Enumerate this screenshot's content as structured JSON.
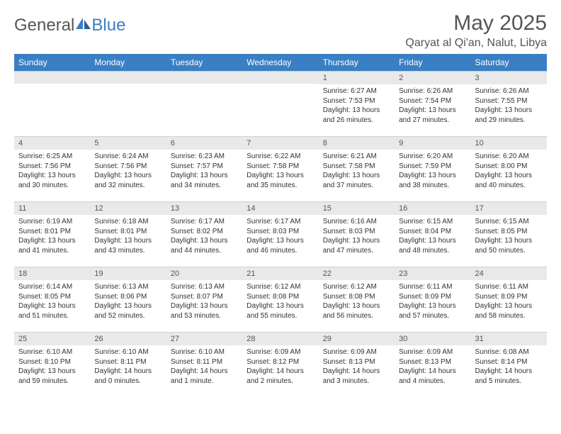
{
  "logo": {
    "text1": "General",
    "text2": "Blue"
  },
  "title": "May 2025",
  "location": "Qaryat al Qi'an, Nalut, Libya",
  "colors": {
    "header_bg": "#3a7fc4",
    "header_text": "#ffffff",
    "daynum_bg": "#e9e9e9",
    "body_text": "#333333",
    "title_text": "#555555"
  },
  "weekdays": [
    "Sunday",
    "Monday",
    "Tuesday",
    "Wednesday",
    "Thursday",
    "Friday",
    "Saturday"
  ],
  "weeks": [
    [
      null,
      null,
      null,
      null,
      {
        "n": "1",
        "sr": "Sunrise: 6:27 AM",
        "ss": "Sunset: 7:53 PM",
        "dl": "Daylight: 13 hours and 26 minutes."
      },
      {
        "n": "2",
        "sr": "Sunrise: 6:26 AM",
        "ss": "Sunset: 7:54 PM",
        "dl": "Daylight: 13 hours and 27 minutes."
      },
      {
        "n": "3",
        "sr": "Sunrise: 6:26 AM",
        "ss": "Sunset: 7:55 PM",
        "dl": "Daylight: 13 hours and 29 minutes."
      }
    ],
    [
      {
        "n": "4",
        "sr": "Sunrise: 6:25 AM",
        "ss": "Sunset: 7:56 PM",
        "dl": "Daylight: 13 hours and 30 minutes."
      },
      {
        "n": "5",
        "sr": "Sunrise: 6:24 AM",
        "ss": "Sunset: 7:56 PM",
        "dl": "Daylight: 13 hours and 32 minutes."
      },
      {
        "n": "6",
        "sr": "Sunrise: 6:23 AM",
        "ss": "Sunset: 7:57 PM",
        "dl": "Daylight: 13 hours and 34 minutes."
      },
      {
        "n": "7",
        "sr": "Sunrise: 6:22 AM",
        "ss": "Sunset: 7:58 PM",
        "dl": "Daylight: 13 hours and 35 minutes."
      },
      {
        "n": "8",
        "sr": "Sunrise: 6:21 AM",
        "ss": "Sunset: 7:58 PM",
        "dl": "Daylight: 13 hours and 37 minutes."
      },
      {
        "n": "9",
        "sr": "Sunrise: 6:20 AM",
        "ss": "Sunset: 7:59 PM",
        "dl": "Daylight: 13 hours and 38 minutes."
      },
      {
        "n": "10",
        "sr": "Sunrise: 6:20 AM",
        "ss": "Sunset: 8:00 PM",
        "dl": "Daylight: 13 hours and 40 minutes."
      }
    ],
    [
      {
        "n": "11",
        "sr": "Sunrise: 6:19 AM",
        "ss": "Sunset: 8:01 PM",
        "dl": "Daylight: 13 hours and 41 minutes."
      },
      {
        "n": "12",
        "sr": "Sunrise: 6:18 AM",
        "ss": "Sunset: 8:01 PM",
        "dl": "Daylight: 13 hours and 43 minutes."
      },
      {
        "n": "13",
        "sr": "Sunrise: 6:17 AM",
        "ss": "Sunset: 8:02 PM",
        "dl": "Daylight: 13 hours and 44 minutes."
      },
      {
        "n": "14",
        "sr": "Sunrise: 6:17 AM",
        "ss": "Sunset: 8:03 PM",
        "dl": "Daylight: 13 hours and 46 minutes."
      },
      {
        "n": "15",
        "sr": "Sunrise: 6:16 AM",
        "ss": "Sunset: 8:03 PM",
        "dl": "Daylight: 13 hours and 47 minutes."
      },
      {
        "n": "16",
        "sr": "Sunrise: 6:15 AM",
        "ss": "Sunset: 8:04 PM",
        "dl": "Daylight: 13 hours and 48 minutes."
      },
      {
        "n": "17",
        "sr": "Sunrise: 6:15 AM",
        "ss": "Sunset: 8:05 PM",
        "dl": "Daylight: 13 hours and 50 minutes."
      }
    ],
    [
      {
        "n": "18",
        "sr": "Sunrise: 6:14 AM",
        "ss": "Sunset: 8:05 PM",
        "dl": "Daylight: 13 hours and 51 minutes."
      },
      {
        "n": "19",
        "sr": "Sunrise: 6:13 AM",
        "ss": "Sunset: 8:06 PM",
        "dl": "Daylight: 13 hours and 52 minutes."
      },
      {
        "n": "20",
        "sr": "Sunrise: 6:13 AM",
        "ss": "Sunset: 8:07 PM",
        "dl": "Daylight: 13 hours and 53 minutes."
      },
      {
        "n": "21",
        "sr": "Sunrise: 6:12 AM",
        "ss": "Sunset: 8:08 PM",
        "dl": "Daylight: 13 hours and 55 minutes."
      },
      {
        "n": "22",
        "sr": "Sunrise: 6:12 AM",
        "ss": "Sunset: 8:08 PM",
        "dl": "Daylight: 13 hours and 56 minutes."
      },
      {
        "n": "23",
        "sr": "Sunrise: 6:11 AM",
        "ss": "Sunset: 8:09 PM",
        "dl": "Daylight: 13 hours and 57 minutes."
      },
      {
        "n": "24",
        "sr": "Sunrise: 6:11 AM",
        "ss": "Sunset: 8:09 PM",
        "dl": "Daylight: 13 hours and 58 minutes."
      }
    ],
    [
      {
        "n": "25",
        "sr": "Sunrise: 6:10 AM",
        "ss": "Sunset: 8:10 PM",
        "dl": "Daylight: 13 hours and 59 minutes."
      },
      {
        "n": "26",
        "sr": "Sunrise: 6:10 AM",
        "ss": "Sunset: 8:11 PM",
        "dl": "Daylight: 14 hours and 0 minutes."
      },
      {
        "n": "27",
        "sr": "Sunrise: 6:10 AM",
        "ss": "Sunset: 8:11 PM",
        "dl": "Daylight: 14 hours and 1 minute."
      },
      {
        "n": "28",
        "sr": "Sunrise: 6:09 AM",
        "ss": "Sunset: 8:12 PM",
        "dl": "Daylight: 14 hours and 2 minutes."
      },
      {
        "n": "29",
        "sr": "Sunrise: 6:09 AM",
        "ss": "Sunset: 8:13 PM",
        "dl": "Daylight: 14 hours and 3 minutes."
      },
      {
        "n": "30",
        "sr": "Sunrise: 6:09 AM",
        "ss": "Sunset: 8:13 PM",
        "dl": "Daylight: 14 hours and 4 minutes."
      },
      {
        "n": "31",
        "sr": "Sunrise: 6:08 AM",
        "ss": "Sunset: 8:14 PM",
        "dl": "Daylight: 14 hours and 5 minutes."
      }
    ]
  ]
}
